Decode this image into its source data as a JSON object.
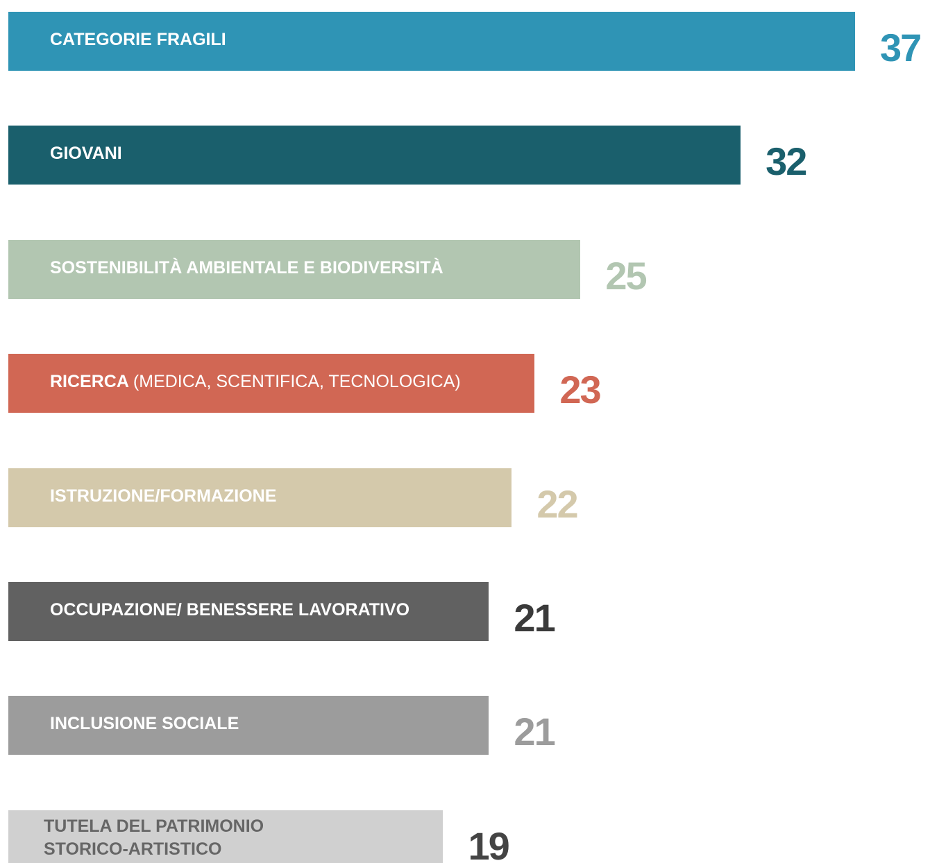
{
  "chart_data": {
    "type": "bar",
    "orientation": "horizontal",
    "categories": [
      "CATEGORIE FRAGILI",
      "GIOVANI",
      "SOSTENIBILITÀ AMBIENTALE E BIODIVERSITÀ",
      "RICERCA",
      "ISTRUZIONE/FORMAZIONE",
      "OCCUPAZIONE/ BENESSERE LAVORATIVO",
      "INCLUSIONE SOCIALE",
      "TUTELA DEL PATRIMONIO\nSTORICO-ARTISTICO"
    ],
    "category_details": [
      null,
      null,
      null,
      "(MEDICA, SCENTIFICA, TECNOLOGICA)",
      null,
      null,
      null,
      null
    ],
    "values": [
      37,
      32,
      25,
      23,
      22,
      21,
      21,
      19
    ],
    "colors": [
      "#2f94b5",
      "#1a5f6c",
      "#b2c6b1",
      "#d16754",
      "#d4c9ab",
      "#616161",
      "#9c9c9c",
      "#d0d0d0"
    ],
    "text_colors": [
      "#ffffff",
      "#ffffff",
      "#ffffff",
      "#ffffff",
      "#ffffff",
      "#ffffff",
      "#ffffff",
      "#666666"
    ],
    "value_colors": [
      "#2f94b5",
      "#1a5f6c",
      "#b2c6b1",
      "#d16754",
      "#d4c9ab",
      "#3a3a3a",
      "#9c9c9c",
      "#444444"
    ],
    "xlim": [
      0,
      37
    ]
  }
}
